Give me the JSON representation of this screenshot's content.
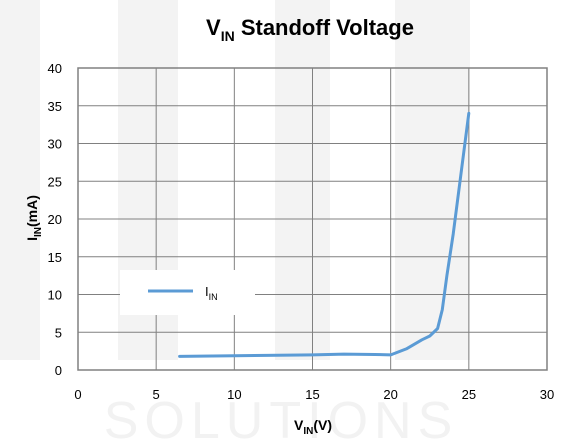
{
  "chart_data": {
    "type": "line",
    "title": {
      "main": "V",
      "sub": "IN",
      "rest": " Standoff Voltage"
    },
    "xlabel": {
      "main": "V",
      "sub": "IN",
      "rest": "(V)"
    },
    "ylabel": {
      "main": "I",
      "sub": "IN",
      "rest": "(mA)"
    },
    "xlim": [
      0,
      30
    ],
    "ylim": [
      0,
      40
    ],
    "xticks": [
      "0",
      "5",
      "10",
      "15",
      "20",
      "25",
      "30"
    ],
    "yticks": [
      "0",
      "5",
      "10",
      "15",
      "20",
      "25",
      "30",
      "35",
      "40"
    ],
    "grid": true,
    "legend_position": "center-left",
    "watermark": "SOLUTIONS",
    "colors": {
      "series": "#5b9bd5",
      "grid": "#808080",
      "frame": "#808080",
      "watermark": "#f2f2f2"
    },
    "series": [
      {
        "name": {
          "main": "I",
          "sub": "IN"
        },
        "x": [
          6.5,
          10,
          15,
          17,
          19,
          20,
          21,
          22,
          22.5,
          23,
          23.3,
          23.6,
          24,
          24.5,
          25
        ],
        "y": [
          1.8,
          1.9,
          2.0,
          2.1,
          2.05,
          2.0,
          2.8,
          4.0,
          4.5,
          5.5,
          8.0,
          12.5,
          18.0,
          26.0,
          34.0
        ]
      }
    ]
  }
}
